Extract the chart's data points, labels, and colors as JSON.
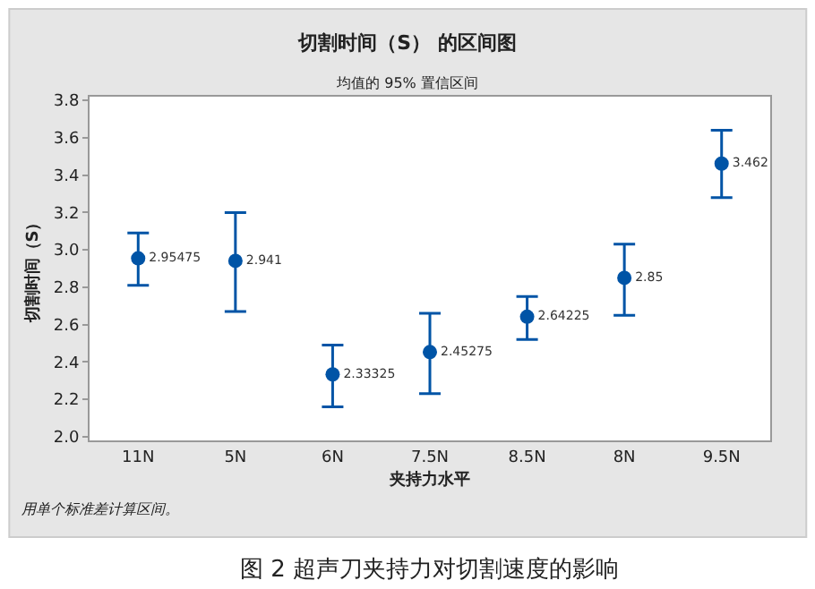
{
  "chart_data": {
    "type": "scatter",
    "title": "切割时间（S） 的区间图",
    "subtitle": "均值的 95% 置信区间",
    "xlabel": "夹持力水平",
    "ylabel": "切割时间（S）",
    "categories": [
      "11N",
      "5N",
      "6N",
      "7.5N",
      "8.5N",
      "8N",
      "9.5N"
    ],
    "values": [
      2.95475,
      2.941,
      2.33325,
      2.45275,
      2.64225,
      2.85,
      3.462
    ],
    "errors": [
      [
        2.81,
        3.09
      ],
      [
        2.67,
        3.2
      ],
      [
        2.16,
        2.49
      ],
      [
        2.23,
        2.66
      ],
      [
        2.52,
        2.75
      ],
      [
        2.65,
        3.03
      ],
      [
        3.28,
        3.64
      ]
    ],
    "color": "#0054a6",
    "marker": "circle",
    "data_labels": true,
    "ylim": [
      1.98,
      3.82
    ],
    "yticks": [
      {
        "value": 2.0,
        "label": "2.0"
      },
      {
        "value": 2.2,
        "label": "2.2"
      },
      {
        "value": 2.4,
        "label": "2.4"
      },
      {
        "value": 2.6,
        "label": "2.6"
      },
      {
        "value": 2.8,
        "label": "2.8"
      },
      {
        "value": 3.0,
        "label": "3.0"
      },
      {
        "value": 3.2,
        "label": "3.2"
      },
      {
        "value": 3.4,
        "label": "3.4"
      },
      {
        "value": 3.6,
        "label": "3.6"
      },
      {
        "value": 3.8,
        "label": "3.8"
      }
    ],
    "annotations": [
      "用单个标准差计算区间。",
      "图 2 超声刀夹持力对切割速度的影响"
    ]
  }
}
